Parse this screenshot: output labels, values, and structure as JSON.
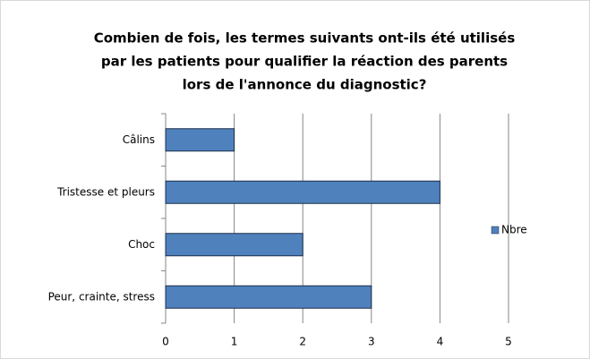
{
  "chart_data": {
    "type": "bar",
    "orientation": "horizontal",
    "title": [
      "Combien de fois, les termes suivants ont-ils été utilisés",
      "par les patients pour qualifier la réaction des parents",
      "lors de l'annonce du diagnostic?"
    ],
    "categories": [
      "Câlins",
      "Tristesse et pleurs",
      "Choc",
      "Peur, crainte, stress"
    ],
    "series": [
      {
        "name": "Nbre",
        "color": "#4f81bd",
        "values": [
          1,
          4,
          2,
          3
        ]
      }
    ],
    "xlim": [
      0,
      5
    ],
    "xticks": [
      0,
      1,
      2,
      3,
      4,
      5
    ],
    "grid": true,
    "legend": "right"
  }
}
